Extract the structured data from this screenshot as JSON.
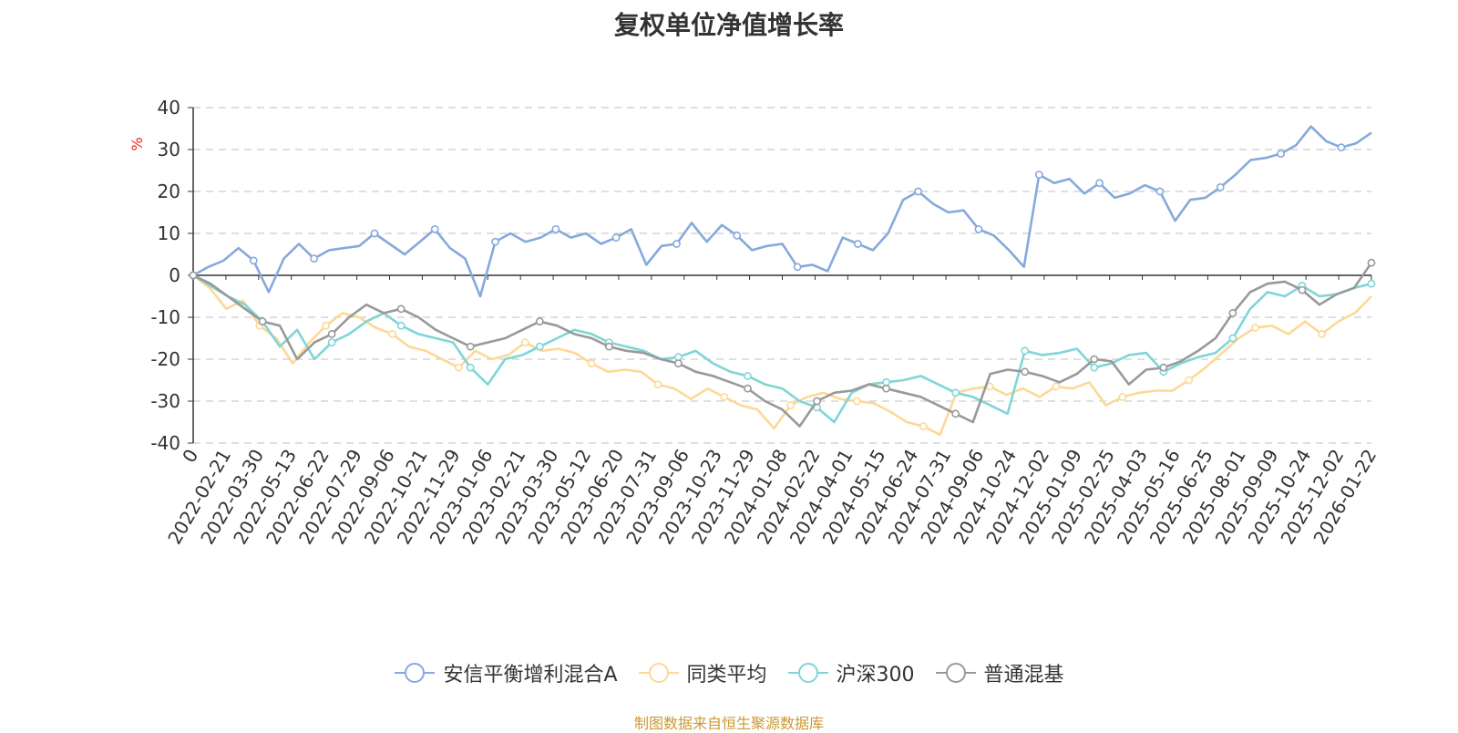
{
  "title": "复权单位净值增长率",
  "source_note": "制图数据来自恒生聚源数据库",
  "colors": {
    "fund": "#86a9dc",
    "peer_avg": "#fdd896",
    "hs300": "#80d5d8",
    "mixed": "#999999",
    "source_text": "#cc9933",
    "unit_text": "#ee2222"
  },
  "chart_data": {
    "type": "line",
    "title": "复权单位净值增长率",
    "ylabel": "%",
    "ylim": [
      -40,
      40
    ],
    "yticks": [
      40,
      30,
      20,
      10,
      0,
      -10,
      -20,
      -30,
      -40
    ],
    "x_tick_labels": [
      "0",
      "2022-02-21",
      "2022-03-30",
      "2022-05-13",
      "2022-06-22",
      "2022-07-29",
      "2022-09-06",
      "2022-10-21",
      "2022-11-29",
      "2023-01-06",
      "2023-02-21",
      "2023-03-30",
      "2023-05-12",
      "2023-06-20",
      "2023-07-31",
      "2023-09-06",
      "2023-10-23",
      "2023-11-29",
      "2024-01-08",
      "2024-02-22",
      "2024-04-01",
      "2024-05-15",
      "2024-06-24",
      "2024-07-31",
      "2024-09-06",
      "2024-10-24",
      "2024-12-02",
      "2025-01-09",
      "2025-02-25",
      "2025-04-03",
      "2025-05-16",
      "2025-06-25",
      "2025-08-01",
      "2025-09-09",
      "2025-10-24",
      "2025-12-02",
      "2026-01-22"
    ],
    "grid": true,
    "legend_position": "bottom",
    "series": [
      {
        "name": "安信平衡增利混合A",
        "color_key": "fund",
        "values": [
          0,
          2,
          3.5,
          6.5,
          3.5,
          -4,
          4,
          7.5,
          4,
          6,
          6.5,
          7,
          10,
          7.5,
          5,
          8,
          11,
          6.5,
          4,
          -5,
          8,
          10,
          8,
          9,
          11,
          9,
          10,
          7.5,
          9,
          11,
          2.5,
          7,
          7.5,
          12.5,
          8,
          12,
          9.5,
          6,
          7,
          7.5,
          2,
          2.5,
          1,
          9,
          7.5,
          6,
          10,
          18,
          20,
          17,
          15,
          15.5,
          11,
          9.5,
          6,
          2,
          24,
          22,
          23,
          19.5,
          22,
          18.5,
          19.5,
          21.5,
          20,
          13,
          18,
          18.5,
          21,
          24,
          27.5,
          28,
          29,
          31,
          35.5,
          32,
          30.5,
          31.5,
          34
        ]
      },
      {
        "name": "同类平均",
        "color_key": "peer_avg",
        "values": [
          0,
          -3,
          -8,
          -6,
          -12,
          -15,
          -21,
          -16,
          -12,
          -9,
          -10,
          -12.5,
          -14,
          -17,
          -18,
          -20,
          -22,
          -18,
          -20,
          -19,
          -16,
          -18,
          -17.5,
          -18.5,
          -21,
          -23,
          -22.5,
          -23,
          -26,
          -27,
          -29.5,
          -27,
          -29,
          -31,
          -32,
          -36.5,
          -31,
          -29,
          -28,
          -29.5,
          -30,
          -30.5,
          -32.5,
          -35,
          -36,
          -38,
          -28,
          -27,
          -26.5,
          -28.5,
          -27,
          -29,
          -26.5,
          -27,
          -25.5,
          -31,
          -29,
          -28,
          -27.5,
          -27.5,
          -25,
          -22,
          -18.5,
          -15,
          -12.5,
          -12,
          -14,
          -11,
          -14,
          -11,
          -9,
          -5
        ]
      },
      {
        "name": "沪深300",
        "color_key": "hs300",
        "values": [
          0,
          -2.5,
          -5,
          -7,
          -11,
          -17,
          -13,
          -20,
          -16,
          -14,
          -11,
          -9,
          -12,
          -14,
          -15,
          -16,
          -22,
          -26,
          -20,
          -19,
          -17,
          -15,
          -13,
          -14,
          -16,
          -17,
          -18,
          -20,
          -19.5,
          -18,
          -21,
          -23,
          -24,
          -26,
          -27,
          -30,
          -31.5,
          -35,
          -28,
          -26,
          -25.5,
          -25,
          -24,
          -26,
          -28,
          -29,
          -31,
          -33,
          -18,
          -19,
          -18.5,
          -17.5,
          -22,
          -21,
          -19,
          -18.5,
          -23,
          -21,
          -19.5,
          -18.5,
          -15,
          -8,
          -4,
          -5,
          -2.5,
          -5,
          -4.5,
          -3,
          -2
        ]
      },
      {
        "name": "普通混基",
        "color_key": "mixed",
        "values": [
          0,
          -2,
          -5,
          -8,
          -11,
          -12,
          -20,
          -16,
          -14,
          -10,
          -7,
          -9,
          -8,
          -10,
          -13,
          -15,
          -17,
          -16,
          -15,
          -13,
          -11,
          -12,
          -14,
          -15,
          -17,
          -18,
          -18.5,
          -20,
          -21,
          -23,
          -24,
          -25.5,
          -27,
          -30,
          -32,
          -36,
          -30,
          -28,
          -27.5,
          -26,
          -27,
          -28,
          -29,
          -31,
          -33,
          -35,
          -23.5,
          -22.5,
          -23,
          -24,
          -25.5,
          -23.5,
          -20,
          -20.5,
          -26,
          -22.5,
          -22,
          -20.5,
          -18,
          -15,
          -9,
          -4,
          -2,
          -1.5,
          -3.5,
          -7,
          -4.5,
          -3,
          3
        ]
      }
    ]
  }
}
